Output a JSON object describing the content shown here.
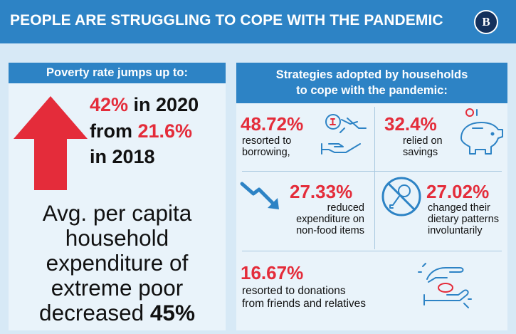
{
  "header": {
    "title": "PEOPLE ARE STRUGGLING TO COPE WITH THE PANDEMIC",
    "logo_text": "B"
  },
  "poverty": {
    "heading": "Poverty rate jumps up to:",
    "rate_2020": "42%",
    "in_2020": " in 2020",
    "from": "from ",
    "rate_2018": "21.6%",
    "in_2018": "in 2018",
    "arrow_icon": "up-arrow-icon"
  },
  "expenditure": {
    "line1": "Avg. per capita",
    "line2": "household",
    "line3": "expenditure of",
    "line4": "extreme poor",
    "line5_text": "decreased ",
    "line5_value": "45%"
  },
  "strategies": {
    "heading_line1": "Strategies adopted by households",
    "heading_line2": "to cope with the pandemic:",
    "borrowing": {
      "value": "48.72%",
      "line1": "resorted to",
      "line2": "borrowing,",
      "icon": "borrowing-hand-coin-icon"
    },
    "savings": {
      "value": "32.4%",
      "line1": "relied on",
      "line2": "savings",
      "icon": "piggy-bank-icon"
    },
    "nonfood": {
      "value": "27.33%",
      "line1": "reduced",
      "line2": "expenditure on",
      "line3": "non-food items",
      "icon": "trend-down-arrow-icon"
    },
    "dietary": {
      "value": "27.02%",
      "line1": "changed their",
      "line2": "dietary patterns",
      "line3": "involuntarily",
      "icon": "no-food-icon"
    },
    "donations": {
      "value": "16.67%",
      "line1": "resorted to donations",
      "line2": "from friends and relatives",
      "icon": "donation-hands-icon"
    }
  },
  "colors": {
    "header_blue": "#2d83c5",
    "accent_red": "#e42c3a",
    "background": "#d7e9f6"
  }
}
